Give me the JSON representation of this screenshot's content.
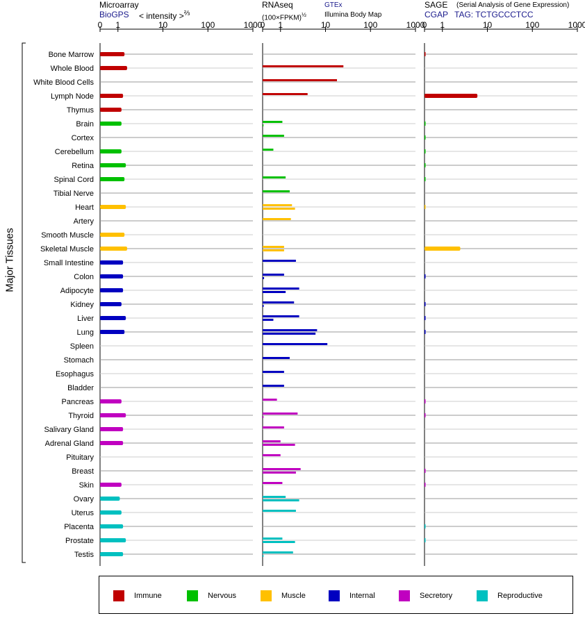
{
  "headers": {
    "microarray": {
      "title": "Microarray",
      "source": "BioGPS",
      "scale": "< intensity >",
      "exponent": "⅔"
    },
    "rnaseq": {
      "title": "RNAseq",
      "unit": "(100×FPKM)",
      "exponent": "½",
      "sources": [
        "GTEx",
        "Illumina Body Map"
      ]
    },
    "sage": {
      "title": "SAGE",
      "subtitle": "(Serial Analysis of Gene Expression)",
      "tag_label": "CGAP",
      "tag": "TAG: TCTGCCCTCC"
    }
  },
  "axis_label": "Major Tissues",
  "chart_data": {
    "type": "bar",
    "tick_labels": [
      "0",
      "1",
      "10",
      "100",
      "1000"
    ],
    "axis_range": [
      0,
      1000
    ],
    "categories": [
      "Bone Marrow",
      "Whole Blood",
      "White Blood Cells",
      "Lymph Node",
      "Thymus",
      "Brain",
      "Cortex",
      "Cerebellum",
      "Retina",
      "Spinal Cord",
      "Tibial Nerve",
      "Heart",
      "Artery",
      "Smooth Muscle",
      "Skeletal Muscle",
      "Small Intestine",
      "Colon",
      "Adipocyte",
      "Kidney",
      "Liver",
      "Lung",
      "Spleen",
      "Stomach",
      "Esophagus",
      "Bladder",
      "Pancreas",
      "Thyroid",
      "Salivary Gland",
      "Adrenal Gland",
      "Pituitary",
      "Breast",
      "Skin",
      "Ovary",
      "Uterus",
      "Placenta",
      "Prostate",
      "Testis"
    ],
    "groups": [
      "Immune",
      "Immune",
      "Immune",
      "Immune",
      "Immune",
      "Nervous",
      "Nervous",
      "Nervous",
      "Nervous",
      "Nervous",
      "Nervous",
      "Muscle",
      "Muscle",
      "Muscle",
      "Muscle",
      "Internal",
      "Internal",
      "Internal",
      "Internal",
      "Internal",
      "Internal",
      "Internal",
      "Internal",
      "Internal",
      "Internal",
      "Secretory",
      "Secretory",
      "Secretory",
      "Secretory",
      "Secretory",
      "Secretory",
      "Secretory",
      "Reproductive",
      "Reproductive",
      "Reproductive",
      "Reproductive",
      "Reproductive"
    ],
    "legend": [
      {
        "name": "Immune",
        "color": "#c00000"
      },
      {
        "name": "Nervous",
        "color": "#00c000"
      },
      {
        "name": "Muscle",
        "color": "#ffc000"
      },
      {
        "name": "Internal",
        "color": "#0000c0"
      },
      {
        "name": "Secretory",
        "color": "#c000c0"
      },
      {
        "name": "Reproductive",
        "color": "#00c0c0"
      }
    ],
    "microarray": [
      1.4,
      1.6,
      null,
      1.3,
      1.2,
      1.2,
      null,
      1.2,
      1.5,
      1.4,
      null,
      1.5,
      null,
      1.4,
      1.6,
      1.3,
      1.3,
      1.3,
      1.2,
      1.5,
      1.4,
      null,
      null,
      null,
      null,
      1.2,
      1.5,
      1.3,
      1.3,
      null,
      null,
      1.2,
      1.1,
      1.2,
      1.3,
      1.5,
      1.3
    ],
    "rnaseq_gtex": [
      null,
      25,
      18,
      4,
      null,
      1.1,
      1.2,
      0.6,
      null,
      1.3,
      1.6,
      1.8,
      1.7,
      null,
      1.2,
      2.2,
      1.2,
      2.6,
      2.0,
      2.6,
      6.5,
      11,
      1.6,
      1.2,
      1.2,
      0.8,
      2.4,
      1.2,
      1.0,
      1.0,
      2.8,
      1.1,
      1.3,
      2.2,
      null,
      1.1,
      1.9
    ],
    "rnaseq_ibm": [
      null,
      null,
      null,
      null,
      null,
      0.05,
      null,
      null,
      null,
      null,
      null,
      2.1,
      null,
      null,
      1.2,
      null,
      0.08,
      1.3,
      0.06,
      0.6,
      6.0,
      null,
      null,
      null,
      null,
      null,
      0.05,
      null,
      2.1,
      null,
      2.2,
      null,
      2.6,
      null,
      null,
      2.1,
      0.05
    ],
    "sage": [
      0.05,
      null,
      null,
      6,
      null,
      0.05,
      0.05,
      0.05,
      0.05,
      0.05,
      null,
      0.02,
      null,
      null,
      2.5,
      null,
      0.05,
      null,
      0.05,
      0.05,
      0.05,
      null,
      null,
      null,
      null,
      0.05,
      0.05,
      null,
      null,
      null,
      0.05,
      0.05,
      null,
      null,
      0.05,
      0.05,
      null
    ]
  }
}
